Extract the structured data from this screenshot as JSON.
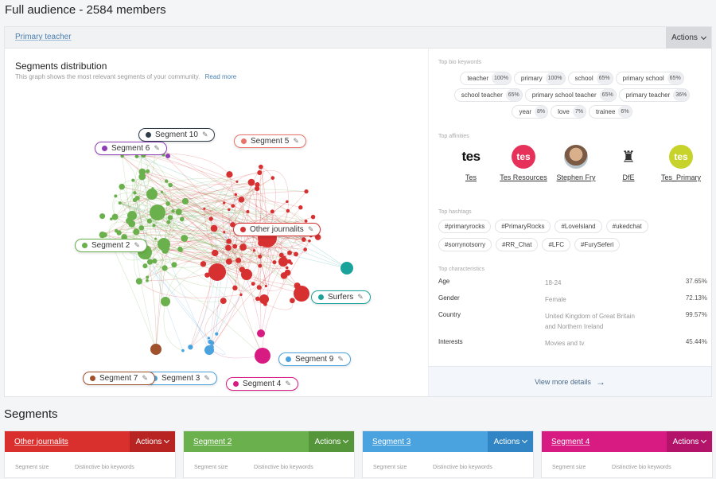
{
  "page": {
    "title": "Full audience - 2584 members"
  },
  "panel": {
    "tab": "Primary teacher",
    "actions": "Actions",
    "distribution_title": "Segments distribution",
    "distribution_sub": "This graph shows the most relevant segments of your community.",
    "read_more": "Read more"
  },
  "segments_pills": [
    {
      "label": "Segment 10",
      "color": "#2f3e4d"
    },
    {
      "label": "Segment 6",
      "color": "#8e3fb8"
    },
    {
      "label": "Segment 5",
      "color": "#e8736a"
    },
    {
      "label": "Segment 2",
      "color": "#6ab04c"
    },
    {
      "label": "Other journalits",
      "color": "#d63031"
    },
    {
      "label": "Surfers",
      "color": "#1aa39a"
    },
    {
      "label": "Segment 9",
      "color": "#4aa3df"
    },
    {
      "label": "Segment 3",
      "color": "#4aa3df"
    },
    {
      "label": "Segment 7",
      "color": "#a0522d"
    },
    {
      "label": "Segment 4",
      "color": "#d81b82"
    }
  ],
  "right": {
    "bio_label": "Top bio keywords",
    "bio_keywords": [
      {
        "word": "teacher",
        "pct": "100%"
      },
      {
        "word": "primary",
        "pct": "100%"
      },
      {
        "word": "school",
        "pct": "65%"
      },
      {
        "word": "primary school",
        "pct": "65%"
      },
      {
        "word": "school teacher",
        "pct": "65%"
      },
      {
        "word": "primary school teacher",
        "pct": "65%"
      },
      {
        "word": "primary teacher",
        "pct": "36%"
      },
      {
        "word": "year",
        "pct": "8%"
      },
      {
        "word": "love",
        "pct": "7%"
      },
      {
        "word": "trainee",
        "pct": "6%"
      }
    ],
    "aff_label": "Top affinities",
    "affinities": [
      {
        "name": "Tes",
        "logo": "tes"
      },
      {
        "name": "Tes Resources",
        "logo": "tes-resources-logo"
      },
      {
        "name": "Stephen Fry",
        "logo": "avatar"
      },
      {
        "name": "DfE",
        "logo": "crest"
      },
      {
        "name": "Tes_Primary",
        "logo": "tes-primary-logo"
      }
    ],
    "ht_label": "Top hashtags",
    "hashtags": [
      "#primaryrocks",
      "#PrimaryRocks",
      "#LoveIsland",
      "#ukedchat",
      "#sorrynotsorry",
      "#RR_Chat",
      "#LFC",
      "#FurySeferi"
    ],
    "char_label": "Top characteristics",
    "characteristics": [
      {
        "k": "Age",
        "v": "18-24",
        "p": "37.65%"
      },
      {
        "k": "Gender",
        "v": "Female",
        "p": "72.13%"
      },
      {
        "k": "Country",
        "v": "United Kingdom of Great Britain and Northern Ireland",
        "p": "99.57%"
      },
      {
        "k": "Interests",
        "v": "Movies and tv",
        "p": "45.44%"
      }
    ],
    "view_more": "View more details"
  },
  "segments": {
    "title": "Segments",
    "cards": [
      {
        "name": "Other journalits",
        "actions": "Actions",
        "color": "#d9302e",
        "act_color": "#b82422",
        "size_label": "Segment size",
        "kw_label": "Distinctive bio keywords"
      },
      {
        "name": "Segment 2",
        "actions": "Actions",
        "color": "#6ab04c",
        "act_color": "#55963a",
        "size_label": "Segment size",
        "kw_label": "Distinctive bio keywords"
      },
      {
        "name": "Segment 3",
        "actions": "Actions",
        "color": "#4aa3df",
        "act_color": "#3185c4",
        "size_label": "Segment size",
        "kw_label": "Distinctive bio keywords"
      },
      {
        "name": "Segment 4",
        "actions": "Actions",
        "color": "#d81b82",
        "act_color": "#b3146a",
        "size_label": "Segment size",
        "kw_label": "Distinctive bio keywords"
      }
    ]
  }
}
